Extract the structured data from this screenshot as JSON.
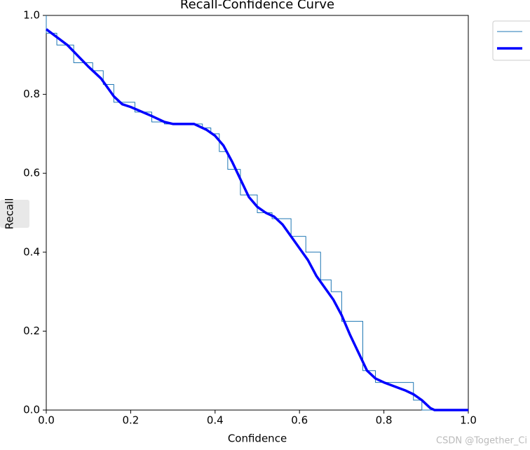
{
  "chart_data": {
    "type": "line",
    "title": "Recall-Confidence Curve",
    "x_label": "Confidence",
    "y_label": "Recall",
    "watermark": "CSDN @Together_Ci",
    "series": [
      {
        "color": "#1f77b4",
        "width": 1,
        "x": [
          0,
          0,
          0.025,
          0.025,
          0.065,
          0.065,
          0.11,
          0.11,
          0.135,
          0.135,
          0.16,
          0.16,
          0.21,
          0.21,
          0.25,
          0.25,
          0.28,
          0.28,
          0.37,
          0.37,
          0.39,
          0.39,
          0.41,
          0.41,
          0.43,
          0.43,
          0.46,
          0.46,
          0.5,
          0.5,
          0.535,
          0.535,
          0.58,
          0.58,
          0.615,
          0.615,
          0.65,
          0.65,
          0.675,
          0.675,
          0.7,
          0.7,
          0.75,
          0.75,
          0.78,
          0.78,
          0.87,
          0.87,
          0.89,
          0.89,
          1.0
        ],
        "values": [
          1.0,
          0.955,
          0.955,
          0.925,
          0.925,
          0.88,
          0.88,
          0.86,
          0.86,
          0.825,
          0.825,
          0.78,
          0.78,
          0.755,
          0.755,
          0.73,
          0.73,
          0.725,
          0.725,
          0.715,
          0.715,
          0.7,
          0.7,
          0.655,
          0.655,
          0.61,
          0.61,
          0.545,
          0.545,
          0.5,
          0.5,
          0.485,
          0.485,
          0.44,
          0.44,
          0.4,
          0.4,
          0.33,
          0.33,
          0.3,
          0.3,
          0.225,
          0.225,
          0.1,
          0.1,
          0.07,
          0.07,
          0.025,
          0.025,
          0.0,
          0.0
        ]
      },
      {
        "color": "#0000ff",
        "width": 3.5,
        "x": [
          0,
          0.05,
          0.1,
          0.13,
          0.16,
          0.18,
          0.2,
          0.25,
          0.28,
          0.3,
          0.35,
          0.38,
          0.4,
          0.42,
          0.44,
          0.46,
          0.48,
          0.5,
          0.52,
          0.54,
          0.56,
          0.58,
          0.6,
          0.62,
          0.64,
          0.66,
          0.68,
          0.7,
          0.72,
          0.74,
          0.76,
          0.78,
          0.8,
          0.85,
          0.87,
          0.89,
          0.91,
          0.92,
          1.0
        ],
        "values": [
          0.965,
          0.925,
          0.87,
          0.84,
          0.795,
          0.775,
          0.768,
          0.745,
          0.73,
          0.725,
          0.725,
          0.71,
          0.695,
          0.67,
          0.63,
          0.585,
          0.54,
          0.515,
          0.5,
          0.49,
          0.47,
          0.44,
          0.41,
          0.38,
          0.34,
          0.31,
          0.28,
          0.24,
          0.19,
          0.145,
          0.1,
          0.08,
          0.07,
          0.05,
          0.04,
          0.025,
          0.005,
          0.0,
          0.0
        ]
      }
    ],
    "xlim": [
      0,
      1
    ],
    "ylim": [
      0,
      1
    ],
    "xticks": [
      {
        "value": 0,
        "label": "0.0"
      },
      0.2,
      0.4,
      0.6,
      0.8,
      {
        "value": 1,
        "label": "1.0"
      }
    ],
    "yticks": [
      {
        "value": 0,
        "label": "0.0"
      },
      0.2,
      0.4,
      0.6,
      0.8,
      {
        "value": 1,
        "label": "1.0"
      }
    ],
    "grid": false
  }
}
